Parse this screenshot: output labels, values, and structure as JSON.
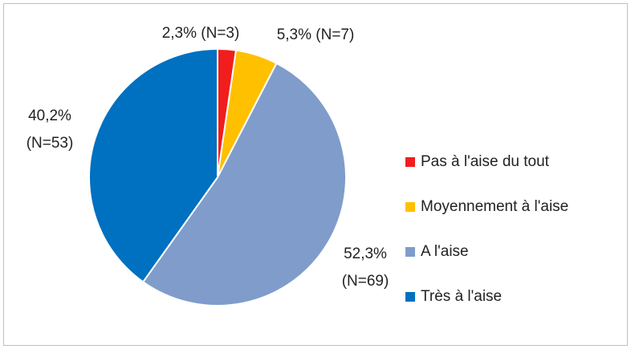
{
  "chart_data": {
    "type": "pie",
    "categories": [
      "Pas à l'aise du tout",
      "Moyennement à l'aise",
      "A l'aise",
      "Très à l'aise"
    ],
    "values": [
      2.3,
      5.3,
      52.3,
      40.2
    ],
    "value_labels": [
      "2,3% (N=3)",
      "5,3% (N=7)",
      "52,3% (N=69)",
      "40,2% (N=53)"
    ],
    "colors": [
      "#f21d1d",
      "#ffc000",
      "#7f9ccb",
      "#0070c0"
    ],
    "legend": "right"
  }
}
